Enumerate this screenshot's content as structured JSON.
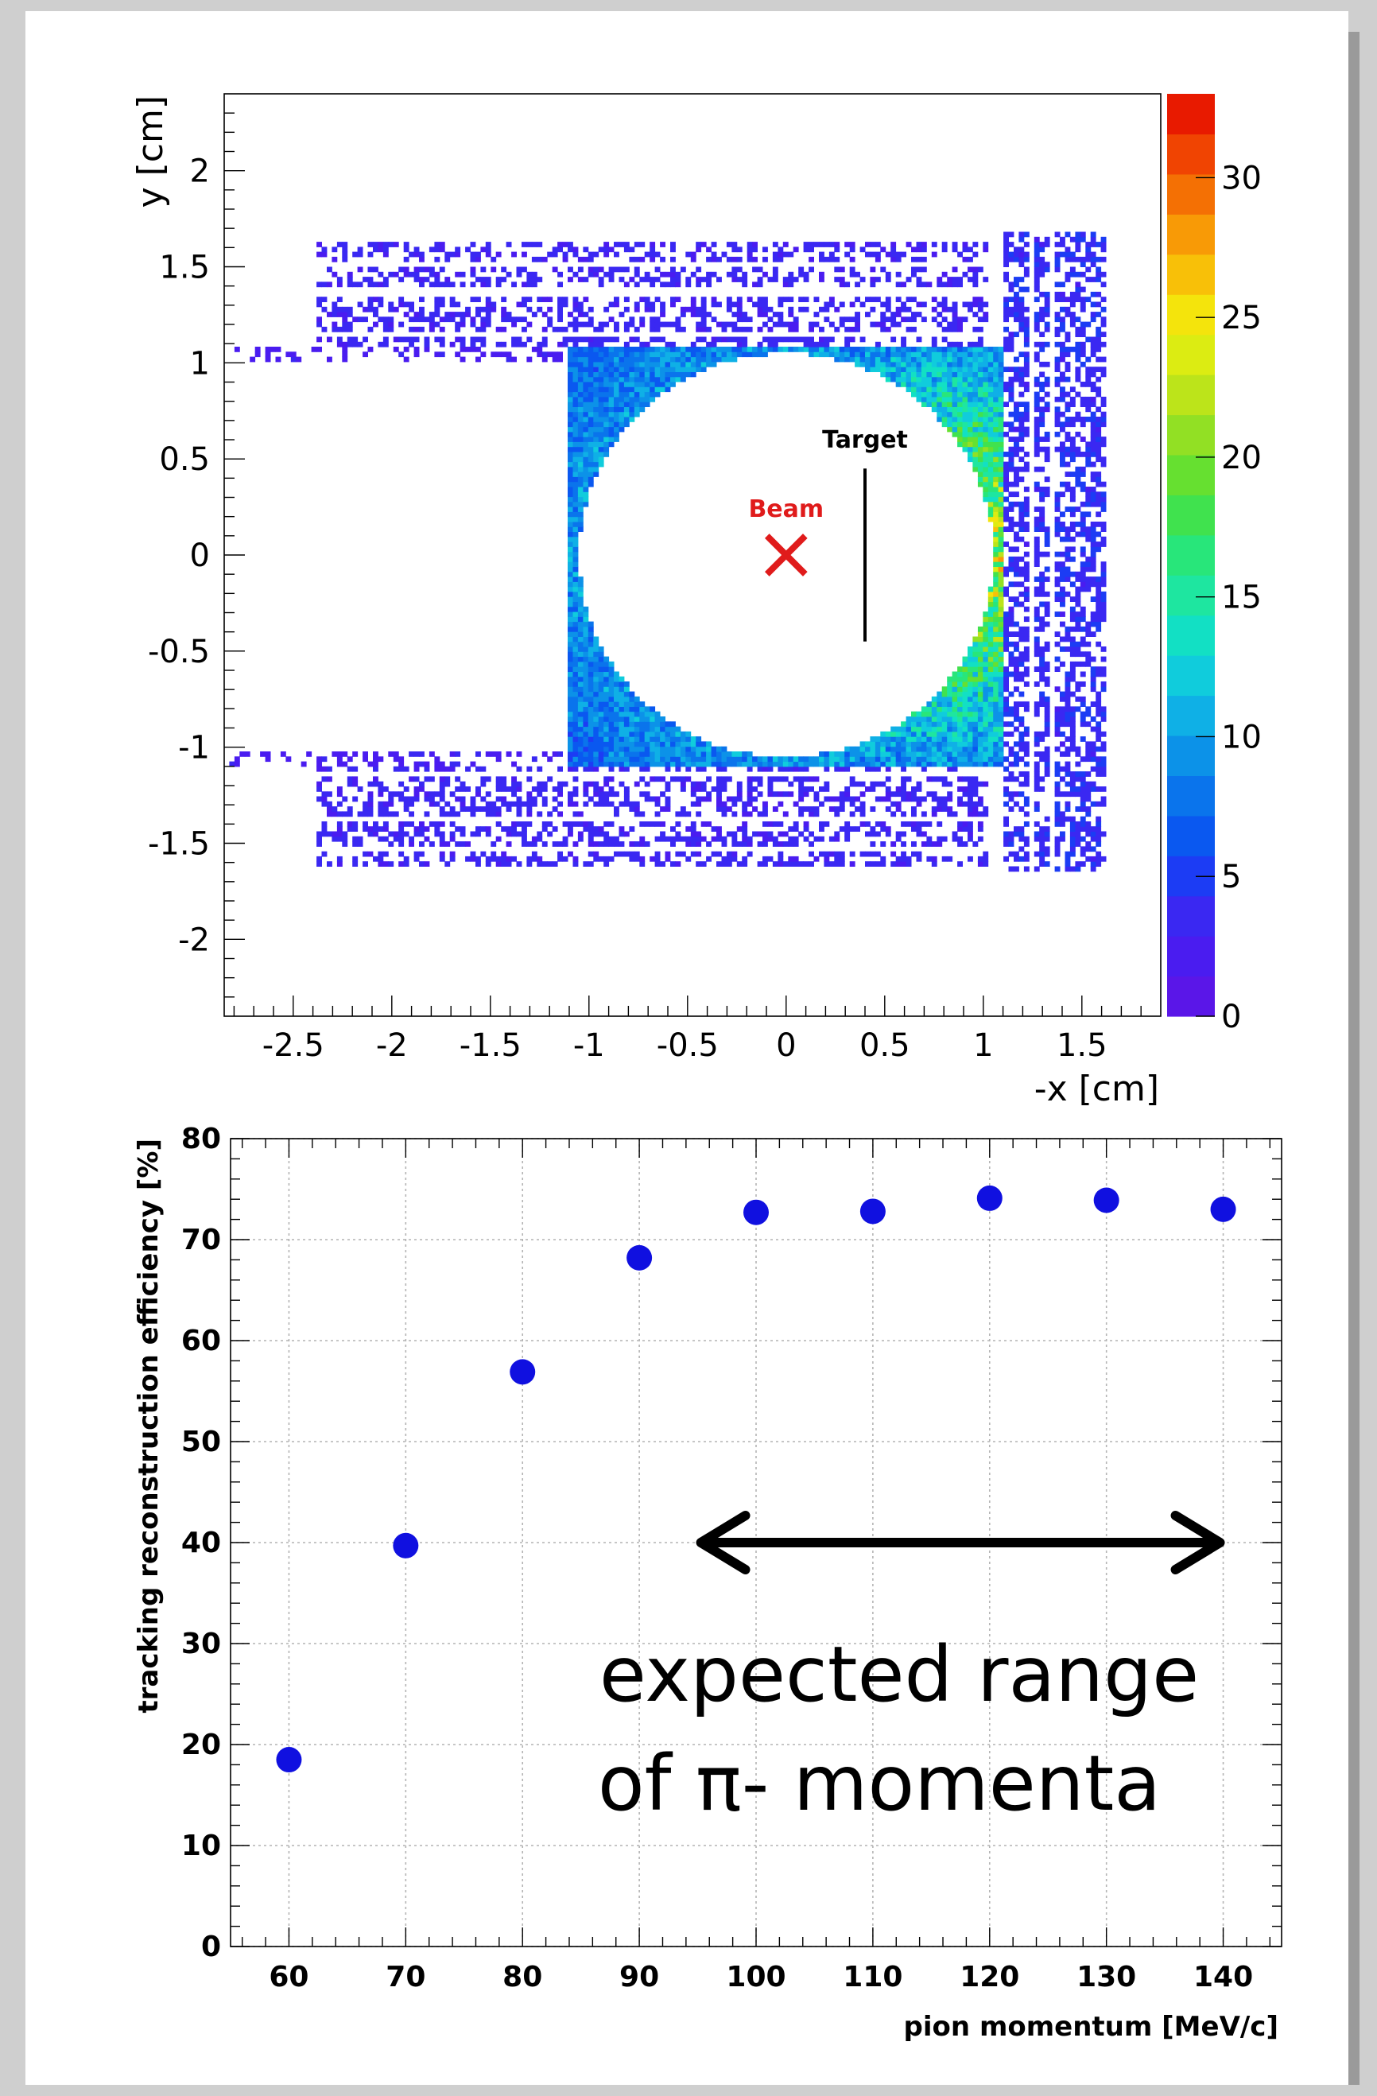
{
  "chart_data": [
    {
      "type": "heatmap",
      "xlabel": "-x [cm]",
      "ylabel": "y [cm]",
      "xlim": [
        -2.85,
        1.9
      ],
      "ylim": [
        -2.4,
        2.4
      ],
      "x_ticks": [
        "-2.5",
        "-2",
        "-1.5",
        "-1",
        "-0.5",
        "0",
        "0.5",
        "1",
        "1.5"
      ],
      "y_ticks": [
        "2",
        "1.5",
        "1",
        "0.5",
        "0",
        "-0.5",
        "-1",
        "-1.5",
        "-2"
      ],
      "colorbar": {
        "range": [
          0,
          33
        ],
        "ticks": [
          "0",
          "5",
          "10",
          "15",
          "20",
          "25",
          "30"
        ]
      },
      "annotations": [
        {
          "text": "Beam",
          "x": 0.0,
          "y": 0.24,
          "color": "#e01b1b"
        },
        {
          "text": "Target",
          "x": 0.4,
          "y": 0.6,
          "color": "#000000"
        }
      ],
      "beam_marker": {
        "symbol": "x",
        "x": 0.0,
        "y": 0.0,
        "color": "#e01b1b"
      },
      "target_line": {
        "x": 0.4,
        "y_range": [
          -0.45,
          0.45
        ]
      },
      "hit_regions_description": "scattered hit map around a circular hole centred at (0,0)",
      "grid": false
    },
    {
      "type": "scatter",
      "xlabel": "pion momentum [MeV/c]",
      "ylabel": "tracking reconstruction efficiency [%]",
      "x": [
        60,
        70,
        80,
        90,
        100,
        110,
        120,
        130,
        140
      ],
      "y": [
        18.5,
        39.7,
        56.9,
        68.2,
        72.7,
        72.8,
        74.1,
        73.9,
        73.0
      ],
      "xlim": [
        55,
        145
      ],
      "ylim": [
        0,
        80
      ],
      "x_ticks": [
        "60",
        "70",
        "80",
        "90",
        "100",
        "110",
        "120",
        "130",
        "140"
      ],
      "y_ticks": [
        "0",
        "10",
        "20",
        "30",
        "40",
        "50",
        "60",
        "70",
        "80"
      ],
      "grid": true,
      "marker_color": "#1010e0",
      "annotation": {
        "line1": "expected range",
        "line2": "of π- momenta",
        "arrow_x_range": [
          95,
          140
        ],
        "arrow_y": 40
      }
    }
  ]
}
